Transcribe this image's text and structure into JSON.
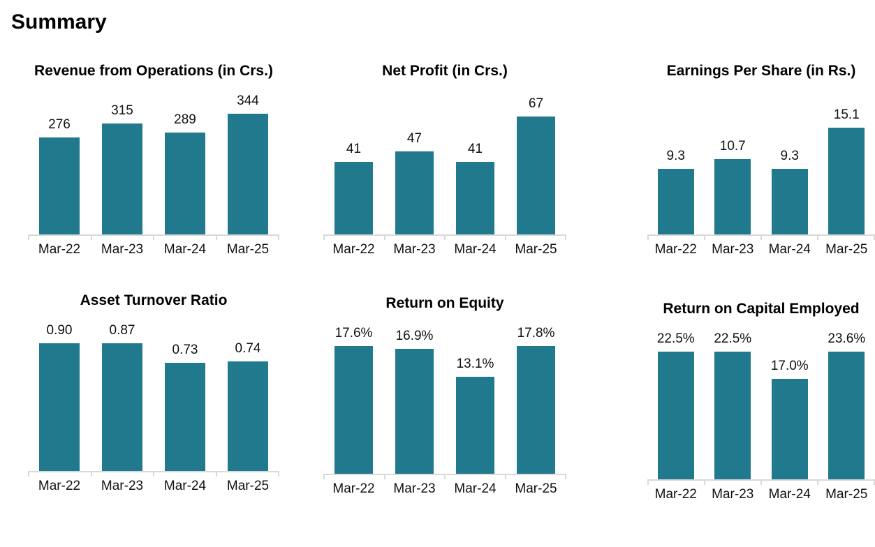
{
  "page": {
    "title": "Summary"
  },
  "colors": {
    "bar_fill": "#20798C",
    "axis_line": "#D9D9D9",
    "text": "#000000"
  },
  "chart_data": [
    {
      "type": "bar",
      "title": "Revenue from Operations (in Crs.)",
      "categories": [
        "Mar-22",
        "Mar-23",
        "Mar-24",
        "Mar-25"
      ],
      "values": [
        276,
        315,
        289,
        344
      ],
      "value_labels": [
        "276",
        "315",
        "289",
        "344"
      ],
      "xlabel": "",
      "ylabel": "",
      "ylim": [
        0,
        400
      ],
      "grid": false,
      "legend": "none",
      "value_label_position": "above-bar"
    },
    {
      "type": "bar",
      "title": "Net Profit (in Crs.)",
      "categories": [
        "Mar-22",
        "Mar-23",
        "Mar-24",
        "Mar-25"
      ],
      "values": [
        41,
        47,
        41,
        67
      ],
      "value_labels": [
        "41",
        "47",
        "41",
        "67"
      ],
      "xlabel": "",
      "ylabel": "",
      "ylim": [
        0,
        80
      ],
      "grid": false,
      "legend": "none",
      "value_label_position": "above-bar"
    },
    {
      "type": "bar",
      "title": "Earnings Per Share (in Rs.)",
      "categories": [
        "Mar-22",
        "Mar-23",
        "Mar-24",
        "Mar-25"
      ],
      "values": [
        9.3,
        10.7,
        9.3,
        15.1
      ],
      "value_labels": [
        "9.3",
        "10.7",
        "9.3",
        "15.1"
      ],
      "xlabel": "",
      "ylabel": "",
      "ylim": [
        0,
        20
      ],
      "grid": false,
      "legend": "none",
      "value_label_position": "above-bar"
    },
    {
      "type": "bar",
      "title": "Asset Turnover Ratio",
      "categories": [
        "Mar-22",
        "Mar-23",
        "Mar-24",
        "Mar-25"
      ],
      "values": [
        0.9,
        0.87,
        0.73,
        0.74
      ],
      "value_labels": [
        "0.90",
        "0.87",
        "0.73",
        "0.74"
      ],
      "xlabel": "",
      "ylabel": "",
      "ylim": [
        0,
        1
      ],
      "grid": false,
      "legend": "none",
      "value_label_position": "above-bar"
    },
    {
      "type": "bar",
      "title": "Return on Equity",
      "categories": [
        "Mar-22",
        "Mar-23",
        "Mar-24",
        "Mar-25"
      ],
      "values": [
        17.6,
        16.9,
        13.1,
        17.8
      ],
      "value_labels": [
        "17.6%",
        "16.9%",
        "13.1%",
        "17.8%"
      ],
      "xlabel": "",
      "ylabel": "",
      "ylim": [
        0,
        20
      ],
      "grid": false,
      "legend": "none",
      "value_label_position": "above-bar"
    },
    {
      "type": "bar",
      "title": "Return on Capital Employed",
      "categories": [
        "Mar-22",
        "Mar-23",
        "Mar-24",
        "Mar-25"
      ],
      "values": [
        22.5,
        22.5,
        17.0,
        23.6
      ],
      "value_labels": [
        "22.5%",
        "22.5%",
        "17.0%",
        "23.6%"
      ],
      "xlabel": "",
      "ylabel": "",
      "ylim": [
        0,
        25
      ],
      "grid": false,
      "legend": "none",
      "value_label_position": "above-bar"
    }
  ]
}
